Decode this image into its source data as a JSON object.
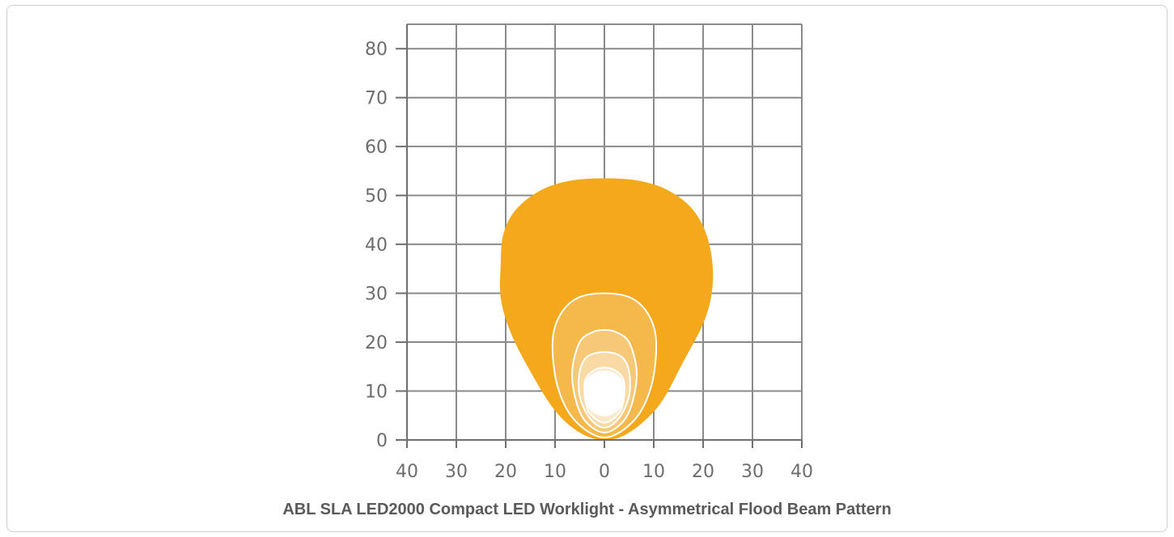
{
  "caption": "ABL SLA LED2000 Compact LED Worklight - Asymmetrical Flood Beam Pattern",
  "chart_data": {
    "type": "area",
    "title": "",
    "xlabel": "",
    "ylabel": "",
    "xlim": [
      -40,
      40
    ],
    "ylim": [
      0,
      85
    ],
    "x_ticks": [
      -40,
      -30,
      -20,
      -10,
      0,
      10,
      20,
      30,
      40
    ],
    "x_tick_labels": [
      "40",
      "30",
      "20",
      "10",
      "0",
      "10",
      "20",
      "30",
      "40"
    ],
    "y_ticks": [
      0,
      10,
      20,
      30,
      40,
      50,
      60,
      70,
      80
    ],
    "y_tick_labels": [
      "0",
      "10",
      "20",
      "30",
      "40",
      "50",
      "60",
      "70",
      "80"
    ],
    "grid": true,
    "series": [
      {
        "color": "#f4a81c",
        "points": [
          [
            0,
            0
          ],
          [
            -5,
            1.5
          ],
          [
            -10,
            6
          ],
          [
            -15,
            14
          ],
          [
            -19,
            22
          ],
          [
            -21,
            29
          ],
          [
            -21,
            36
          ],
          [
            -20.5,
            42
          ],
          [
            -18,
            47
          ],
          [
            -13,
            51
          ],
          [
            -7,
            53
          ],
          [
            0,
            53.5
          ],
          [
            7,
            53
          ],
          [
            13,
            51
          ],
          [
            18,
            47
          ],
          [
            21,
            41
          ],
          [
            22,
            33
          ],
          [
            20.5,
            25
          ],
          [
            16,
            16
          ],
          [
            11,
            7
          ],
          [
            5,
            1.5
          ]
        ]
      },
      {
        "color": "#f5b84a",
        "points": [
          [
            0,
            0.5
          ],
          [
            -6,
            4
          ],
          [
            -9.5,
            11
          ],
          [
            -10.5,
            20
          ],
          [
            -9,
            25.5
          ],
          [
            -5.5,
            29
          ],
          [
            0,
            30
          ],
          [
            5.5,
            29
          ],
          [
            9,
            25.5
          ],
          [
            10.5,
            20
          ],
          [
            9.5,
            11
          ],
          [
            6,
            4
          ]
        ]
      },
      {
        "color": "#f7c878",
        "points": [
          [
            0,
            1.5
          ],
          [
            -4,
            4
          ],
          [
            -6,
            9
          ],
          [
            -6.5,
            14.5
          ],
          [
            -5,
            20
          ],
          [
            -2.5,
            22
          ],
          [
            0,
            22.5
          ],
          [
            2.5,
            22
          ],
          [
            5,
            20
          ],
          [
            6.5,
            14.5
          ],
          [
            6,
            9
          ],
          [
            4,
            4
          ]
        ]
      },
      {
        "color": "#f9d9a4",
        "points": [
          [
            0,
            2.5
          ],
          [
            -3,
            4.5
          ],
          [
            -5,
            9
          ],
          [
            -5,
            14
          ],
          [
            -3.5,
            17
          ],
          [
            0,
            18
          ],
          [
            3.5,
            17
          ],
          [
            5,
            14
          ],
          [
            5,
            9
          ],
          [
            3,
            4.5
          ]
        ]
      },
      {
        "color": "#fce9cc",
        "points": [
          [
            0,
            3.5
          ],
          [
            -3,
            5.5
          ],
          [
            -4,
            9
          ],
          [
            -3.8,
            12.5
          ],
          [
            -2,
            14.3
          ],
          [
            0,
            14.8
          ],
          [
            2,
            14.3
          ],
          [
            3.8,
            12.5
          ],
          [
            4,
            9
          ],
          [
            3,
            5.5
          ]
        ]
      },
      {
        "color": "#ffffff",
        "points": [
          [
            0,
            5
          ],
          [
            -3,
            6.5
          ],
          [
            -4,
            9.5
          ],
          [
            -3.6,
            12
          ],
          [
            -2,
            13.5
          ],
          [
            0,
            14
          ],
          [
            2,
            13.5
          ],
          [
            3.6,
            12
          ],
          [
            4,
            9.5
          ],
          [
            3,
            6.5
          ]
        ]
      }
    ]
  }
}
